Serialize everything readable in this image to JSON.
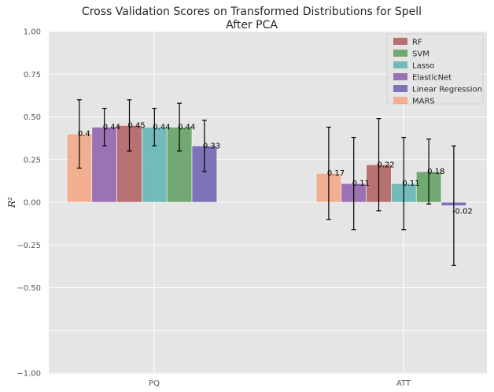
{
  "chart_data": {
    "type": "bar",
    "title_line1": "Cross Validation Scores on Transformed Distributions for Spell",
    "title_line2": "After PCA",
    "ylabel": "R²",
    "ylim": [
      -1.0,
      1.0
    ],
    "yticks": [
      "1.00",
      "0.75",
      "0.50",
      "0.25",
      "0.00",
      "−0.25",
      "−0.50",
      "−1.00"
    ],
    "ytick_values": [
      1.0,
      0.75,
      0.5,
      0.25,
      0.0,
      -0.25,
      -0.5,
      -1.0
    ],
    "categories": [
      "PQ",
      "ATT"
    ],
    "grid": true,
    "legend_position": "top-right",
    "series": [
      {
        "name": "MARS",
        "color": "#f4a582",
        "values": [
          0.4,
          0.17
        ],
        "labels": [
          "0.4",
          "0.17"
        ],
        "err_low": [
          0.2,
          -0.1
        ],
        "err_high": [
          0.6,
          0.44
        ]
      },
      {
        "name": "ElasticNet",
        "color": "#8e5fad",
        "values": [
          0.44,
          0.11
        ],
        "labels": [
          "0.44",
          "0.11"
        ],
        "err_low": [
          0.33,
          -0.16
        ],
        "err_high": [
          0.55,
          0.38
        ]
      },
      {
        "name": "RF",
        "color": "#b05d5d",
        "values": [
          0.45,
          0.22
        ],
        "labels": [
          "0.45",
          "0.22"
        ],
        "err_low": [
          0.3,
          -0.05
        ],
        "err_high": [
          0.6,
          0.49
        ]
      },
      {
        "name": "Lasso",
        "color": "#5fb3b3",
        "values": [
          0.44,
          0.11
        ],
        "labels": [
          "0.44",
          "0.11"
        ],
        "err_low": [
          0.33,
          -0.16
        ],
        "err_high": [
          0.55,
          0.38
        ]
      },
      {
        "name": "SVM",
        "color": "#5e9e5e",
        "values": [
          0.44,
          0.18
        ],
        "labels": [
          "0.44",
          "0.18"
        ],
        "err_low": [
          0.3,
          -0.01
        ],
        "err_high": [
          0.58,
          0.37
        ]
      },
      {
        "name": "Linear Regression",
        "color": "#6a5fb0",
        "values": [
          0.33,
          -0.02
        ],
        "labels": [
          "0.33",
          "-0.02"
        ],
        "err_low": [
          0.18,
          -0.37
        ],
        "err_high": [
          0.48,
          0.33
        ]
      }
    ],
    "legend_order": [
      "RF",
      "SVM",
      "Lasso",
      "ElasticNet",
      "Linear Regression",
      "MARS"
    ]
  }
}
